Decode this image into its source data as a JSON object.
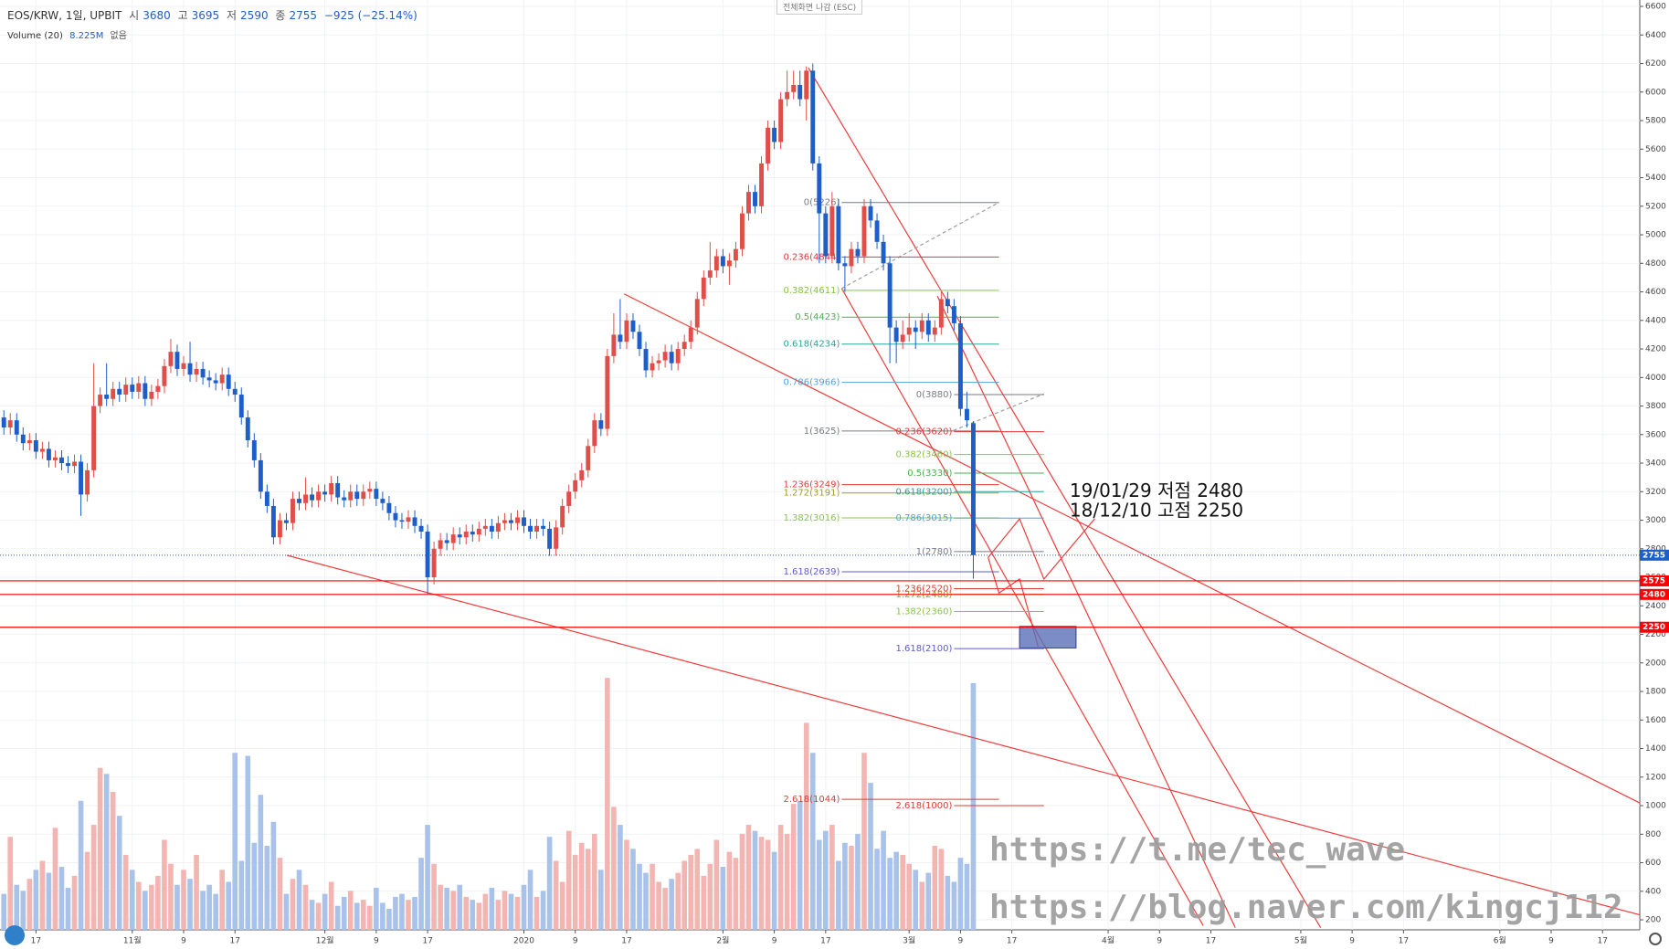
{
  "header": {
    "symbol": "EOS/KRW, 1일, UPBIT",
    "ohlc_labels": [
      "시",
      "고",
      "저",
      "종"
    ],
    "change": "−925 (−25.14%)",
    "volume_title": "Volume (20)",
    "volume_value": "8.225M",
    "volume_extra": "없음",
    "fullscreen": "전체화면 나감 (ESC)"
  },
  "chart_data": {
    "type": "candlestick",
    "x": [
      10,
      11,
      12,
      13,
      14,
      15,
      16,
      17,
      18,
      19,
      20,
      21,
      22,
      23,
      24,
      25,
      26,
      27,
      28,
      29,
      30,
      31,
      32,
      33,
      34,
      35,
      36,
      37,
      38,
      39,
      40,
      41,
      42,
      43,
      44,
      45,
      46,
      47,
      48,
      49,
      50,
      51,
      52,
      53,
      54,
      55,
      56,
      57,
      58,
      59,
      60,
      61,
      62,
      63,
      64,
      65,
      66,
      67,
      68,
      69,
      70,
      71,
      72,
      73,
      74,
      75,
      76,
      77,
      78,
      79,
      80,
      81,
      82,
      83,
      84,
      85,
      86,
      87,
      88,
      89,
      90,
      91,
      92,
      93,
      94,
      95,
      96,
      97,
      98,
      99,
      100,
      101,
      102,
      103,
      104,
      105,
      106,
      107,
      108,
      109,
      110,
      111,
      112,
      113,
      114,
      115,
      116,
      117,
      118,
      119,
      120,
      121,
      122,
      123,
      124,
      125,
      126,
      127,
      128,
      129,
      130,
      131,
      132,
      133,
      134,
      135,
      136,
      137,
      138,
      139,
      140,
      141,
      142,
      143,
      144,
      145,
      146,
      147,
      148,
      149,
      150,
      151,
      152,
      153,
      154,
      155,
      156,
      157,
      158,
      159,
      160,
      161,
      162
    ],
    "open": [
      3800,
      3720,
      3650,
      3700,
      3600,
      3540,
      3560,
      3480,
      3500,
      3420,
      3440,
      3400,
      3380,
      3410,
      3180,
      3350,
      3800,
      3880,
      3850,
      3920,
      3880,
      3950,
      3900,
      3960,
      3850,
      3900,
      3940,
      4080,
      4180,
      4060,
      4100,
      4020,
      4060,
      4000,
      3980,
      3960,
      4020,
      3920,
      3880,
      3720,
      3560,
      3420,
      3200,
      3100,
      2880,
      3000,
      2980,
      3150,
      3120,
      3180,
      3140,
      3200,
      3180,
      3260,
      3160,
      3140,
      3200,
      3150,
      3200,
      3220,
      3150,
      3120,
      3050,
      3000,
      2990,
      3020,
      2960,
      2920,
      2600,
      2800,
      2860,
      2840,
      2900,
      2880,
      2920,
      2900,
      2940,
      2960,
      2920,
      2980,
      3000,
      2980,
      3020,
      2960,
      2920,
      2960,
      2940,
      2800,
      2950,
      3100,
      3200,
      3280,
      3350,
      3520,
      3700,
      3640,
      4150,
      4300,
      4250,
      4400,
      4320,
      4200,
      4050,
      4100,
      4120,
      4180,
      4100,
      4200,
      4250,
      4350,
      4550,
      4700,
      4750,
      4850,
      4780,
      4820,
      4900,
      5150,
      5300,
      5200,
      5500,
      5750,
      5650,
      5950,
      6000,
      6050,
      5950,
      6150,
      5500,
      5150,
      4850,
      5200,
      4800,
      4780,
      4900,
      4850,
      5200,
      5100,
      4950,
      4800,
      4350,
      4250,
      4300,
      4350,
      4320,
      4400,
      4300,
      4350,
      4550,
      4500,
      4380,
      3780,
      3680
    ],
    "high": [
      3850,
      3770,
      3750,
      3750,
      3650,
      3610,
      3610,
      3550,
      3550,
      3490,
      3490,
      3450,
      3460,
      3460,
      3400,
      4100,
      3930,
      4100,
      3970,
      3970,
      4000,
      4000,
      4010,
      4010,
      3950,
      3990,
      4130,
      4270,
      4230,
      4150,
      4250,
      4110,
      4110,
      4050,
      4030,
      4070,
      4070,
      3970,
      3930,
      3770,
      3610,
      3470,
      3250,
      3150,
      3050,
      3050,
      3200,
      3200,
      3300,
      3230,
      3250,
      3250,
      3310,
      3310,
      3210,
      3250,
      3250,
      3250,
      3270,
      3270,
      3200,
      3170,
      3100,
      3050,
      3070,
      3070,
      3010,
      2970,
      2850,
      2910,
      2910,
      2950,
      2950,
      2970,
      2970,
      2990,
      3010,
      3010,
      3030,
      3050,
      3050,
      3070,
      3070,
      3010,
      3010,
      3010,
      2990,
      3000,
      3150,
      3250,
      3330,
      3400,
      3570,
      3750,
      3750,
      4200,
      4450,
      4550,
      4450,
      4450,
      4370,
      4250,
      4150,
      4170,
      4230,
      4230,
      4250,
      4300,
      4400,
      4600,
      4750,
      4950,
      4900,
      4900,
      4870,
      4950,
      5200,
      5350,
      5350,
      5550,
      5800,
      5800,
      6000,
      6150,
      6150,
      6150,
      6180,
      6200,
      5550,
      5200,
      5300,
      5250,
      4850,
      4950,
      4950,
      5250,
      5250,
      5150,
      5000,
      4850,
      4400,
      4400,
      4450,
      4400,
      4450,
      4450,
      4400,
      4600,
      4600,
      4550,
      4430,
      3900,
      3695
    ],
    "low": [
      3670,
      3600,
      3600,
      3550,
      3490,
      3490,
      3430,
      3430,
      3370,
      3370,
      3350,
      3330,
      3330,
      3030,
      3130,
      3300,
      3750,
      3800,
      3800,
      3830,
      3830,
      3850,
      3850,
      3800,
      3800,
      3850,
      3890,
      4030,
      4010,
      4010,
      3970,
      3970,
      3950,
      3930,
      3910,
      3910,
      3870,
      3830,
      3670,
      3510,
      3370,
      3150,
      3050,
      2830,
      2830,
      2930,
      2930,
      3070,
      3070,
      3090,
      3090,
      3130,
      3130,
      3110,
      3090,
      3090,
      3100,
      3100,
      3150,
      3100,
      3070,
      3000,
      2950,
      2940,
      2940,
      2910,
      2870,
      2480,
      2550,
      2750,
      2790,
      2790,
      2830,
      2830,
      2850,
      2850,
      2890,
      2870,
      2870,
      2930,
      2930,
      2930,
      2910,
      2870,
      2870,
      2890,
      2750,
      2750,
      2900,
      3050,
      3150,
      3230,
      3300,
      3470,
      3590,
      3590,
      4100,
      4200,
      4200,
      4270,
      4150,
      4000,
      4000,
      4050,
      4070,
      4050,
      4050,
      4150,
      4200,
      4300,
      4500,
      4650,
      4700,
      4730,
      4650,
      4770,
      4850,
      5100,
      5150,
      5150,
      5450,
      5600,
      5600,
      5900,
      5950,
      5900,
      5800,
      5450,
      4800,
      4800,
      4800,
      4750,
      4600,
      4730,
      4800,
      4800,
      5050,
      4900,
      4750,
      4100,
      4100,
      4200,
      4250,
      4200,
      4270,
      4250,
      4250,
      4300,
      4450,
      4330,
      3730,
      3650,
      2590
    ],
    "close": [
      3720,
      3650,
      3700,
      3600,
      3540,
      3560,
      3480,
      3500,
      3420,
      3440,
      3400,
      3380,
      3410,
      3180,
      3350,
      3800,
      3880,
      3850,
      3920,
      3880,
      3950,
      3900,
      3960,
      3850,
      3900,
      3940,
      4080,
      4180,
      4060,
      4100,
      4020,
      4060,
      4000,
      3980,
      3960,
      4020,
      3920,
      3880,
      3720,
      3560,
      3420,
      3200,
      3100,
      2880,
      3000,
      2980,
      3150,
      3120,
      3180,
      3140,
      3200,
      3180,
      3260,
      3160,
      3140,
      3200,
      3150,
      3200,
      3220,
      3150,
      3120,
      3050,
      3000,
      2990,
      3020,
      2960,
      2920,
      2600,
      2800,
      2860,
      2840,
      2900,
      2880,
      2920,
      2900,
      2940,
      2960,
      2920,
      2980,
      3000,
      2980,
      3020,
      2960,
      2920,
      2960,
      2940,
      2800,
      2950,
      3100,
      3200,
      3280,
      3350,
      3520,
      3700,
      3640,
      4150,
      4300,
      4250,
      4400,
      4320,
      4200,
      4050,
      4100,
      4120,
      4180,
      4100,
      4200,
      4250,
      4350,
      4550,
      4700,
      4750,
      4850,
      4780,
      4820,
      4900,
      5150,
      5300,
      5200,
      5500,
      5750,
      5650,
      5950,
      6000,
      6050,
      5950,
      6150,
      5500,
      5150,
      4850,
      5200,
      4800,
      4780,
      4900,
      4850,
      5200,
      5100,
      4950,
      4800,
      4350,
      4250,
      4300,
      4350,
      4320,
      4400,
      4300,
      4350,
      4550,
      4500,
      4380,
      3780,
      3700,
      2755
    ],
    "volume": [
      2.0,
      1.2,
      3.1,
      1.5,
      1.3,
      1.7,
      2.0,
      2.3,
      1.9,
      3.4,
      2.1,
      1.4,
      1.8,
      4.3,
      2.6,
      3.5,
      5.4,
      5.2,
      4.6,
      3.8,
      2.5,
      2.0,
      1.6,
      1.3,
      1.5,
      1.8,
      3.0,
      2.2,
      1.5,
      2.0,
      1.7,
      2.5,
      1.3,
      1.5,
      1.2,
      2.0,
      1.6,
      5.9,
      2.3,
      5.8,
      2.9,
      4.5,
      2.8,
      3.6,
      2.4,
      1.2,
      1.7,
      2.0,
      1.5,
      1.0,
      0.9,
      1.2,
      1.6,
      0.8,
      1.1,
      1.3,
      0.9,
      1.0,
      0.8,
      1.4,
      0.9,
      0.7,
      1.1,
      1.2,
      1.0,
      1.1,
      2.4,
      3.5,
      2.2,
      1.5,
      1.4,
      1.3,
      1.5,
      1.1,
      1.0,
      0.9,
      1.2,
      1.4,
      1.0,
      1.3,
      1.2,
      1.1,
      1.5,
      2.0,
      1.1,
      1.3,
      3.1,
      2.3,
      1.6,
      3.3,
      2.5,
      2.9,
      2.7,
      3.2,
      2.0,
      8.4,
      4.1,
      3.5,
      3.0,
      2.7,
      2.2,
      1.9,
      2.2,
      1.6,
      1.4,
      1.7,
      1.9,
      2.3,
      2.5,
      2.7,
      1.8,
      2.2,
      3.0,
      2.1,
      2.6,
      2.4,
      3.2,
      3.5,
      3.3,
      3.1,
      3.0,
      2.6,
      3.5,
      3.2,
      4.2,
      4.3,
      6.9,
      5.9,
      3.0,
      3.3,
      3.5,
      2.3,
      2.9,
      2.8,
      3.2,
      5.9,
      4.9,
      2.7,
      3.3,
      2.4,
      2.6,
      2.5,
      2.2,
      2.0,
      1.6,
      1.9,
      2.8,
      2.7,
      1.8,
      1.6,
      2.4,
      2.2,
      8.225
    ],
    "up_color": "#e04e4a",
    "down_color": "#1e5ec8",
    "volume_up_color": "#f3b5b1",
    "volume_down_color": "#a8c2ea",
    "vlim": [
      0,
      31
    ],
    "xlim": [
      10.4,
      265.8
    ],
    "xticks": [
      {
        "value": 16,
        "label": "17"
      },
      {
        "value": 31,
        "label": "11월"
      },
      {
        "value": 39,
        "label": "9"
      },
      {
        "value": 47,
        "label": "17"
      },
      {
        "value": 61,
        "label": "12월"
      },
      {
        "value": 69,
        "label": "9"
      },
      {
        "value": 77,
        "label": "17"
      },
      {
        "value": 92,
        "label": "2020"
      },
      {
        "value": 100,
        "label": "9"
      },
      {
        "value": 108,
        "label": "17"
      },
      {
        "value": 123,
        "label": "2월"
      },
      {
        "value": 131,
        "label": "9"
      },
      {
        "value": 139,
        "label": "17"
      },
      {
        "value": 152,
        "label": "3월"
      },
      {
        "value": 160,
        "label": "9"
      },
      {
        "value": 168,
        "label": "17"
      },
      {
        "value": 183,
        "label": "4월"
      },
      {
        "value": 191,
        "label": "9"
      },
      {
        "value": 199,
        "label": "17"
      },
      {
        "value": 213,
        "label": "5월"
      },
      {
        "value": 221,
        "label": "9"
      },
      {
        "value": 229,
        "label": "17"
      },
      {
        "value": 244,
        "label": "6월"
      },
      {
        "value": 252,
        "label": "9"
      },
      {
        "value": 260,
        "label": "17"
      }
    ],
    "ylim": [
      130,
      6645
    ],
    "yticks": [
      200,
      400,
      600,
      800,
      1000,
      1200,
      1400,
      1600,
      1800,
      2000,
      2200,
      2400,
      2600,
      2800,
      3000,
      3200,
      3400,
      3600,
      3800,
      4000,
      4200,
      4400,
      4600,
      4800,
      5000,
      5200,
      5400,
      5600,
      5800,
      6000,
      6200,
      6400,
      6600
    ],
    "grid": true,
    "hlines": [
      {
        "value": 2575,
        "color": "#ff0000"
      },
      {
        "value": 2480,
        "color": "#ff0000"
      },
      {
        "value": 2250,
        "color": "#ff0000"
      }
    ],
    "fib": [
      {
        "x": [
          141.5,
          166
        ],
        "levels": [
          {
            "label": "0(5226)",
            "value": 5226,
            "color": "#787b86"
          },
          {
            "label": "0.236(4844)",
            "value": 4844,
            "color": "#e53935"
          },
          {
            "label": "0.382(4611)",
            "value": 4611,
            "color": "#8bc34a"
          },
          {
            "label": "0.5(4423)",
            "value": 4423,
            "color": "#4caf50"
          },
          {
            "label": "0.618(4234)",
            "value": 4234,
            "color": "#26a69a"
          },
          {
            "label": "0.786(3966)",
            "value": 3966,
            "color": "#4fa3d8"
          },
          {
            "label": "1(3625)",
            "value": 3625,
            "color": "#787b86"
          },
          {
            "label": "1.236(3249)",
            "value": 3249,
            "color": "#e53935"
          },
          {
            "label": "1.272(3191)",
            "value": 3191,
            "color": "#9e9d24"
          },
          {
            "label": "1.382(3016)",
            "value": 3016,
            "color": "#8bc34a"
          },
          {
            "label": "1.618(2639)",
            "value": 2639,
            "color": "#5c5ccc"
          },
          {
            "label": "2.618(1044)",
            "value": 1044,
            "color": "#e53935"
          }
        ]
      },
      {
        "x": [
          159,
          173
        ],
        "levels": [
          {
            "label": "0(3880)",
            "value": 3880,
            "color": "#787b86"
          },
          {
            "label": "0.236(3620)",
            "value": 3620,
            "color": "#e53935"
          },
          {
            "label": "0.382(3460)",
            "value": 3460,
            "color": "#8bc34a"
          },
          {
            "label": "0.5(3330)",
            "value": 3330,
            "color": "#4caf50"
          },
          {
            "label": "0.618(3200)",
            "value": 3200,
            "color": "#26a69a"
          },
          {
            "label": "0.786(3015)",
            "value": 3015,
            "color": "#4fa3d8"
          },
          {
            "label": "1(2780)",
            "value": 2780,
            "color": "#787b86"
          },
          {
            "label": "1.236(2520)",
            "value": 2520,
            "color": "#e53935"
          },
          {
            "label": "1.272(2480)",
            "value": 2480,
            "color": "#9e9d24"
          },
          {
            "label": "1.382(2360)",
            "value": 2360,
            "color": "#8bc34a"
          },
          {
            "label": "1.618(2100)",
            "value": 2100,
            "color": "#5c5ccc"
          },
          {
            "label": "2.618(1000)",
            "value": 1000,
            "color": "#e53935"
          }
        ]
      }
    ],
    "trendlines": [
      {
        "x": [
          107.6,
          265.8
        ],
        "y": [
          4586,
          1019
        ],
        "color": "#f23b3b"
      },
      {
        "x": [
          55.1,
          265.8
        ],
        "y": [
          2754,
          235
        ],
        "color": "#f23b3b"
      },
      {
        "x": [
          136.3,
          216.1
        ],
        "y": [
          6170,
          145
        ],
        "color": "#f23b3b"
      },
      {
        "x": [
          156.4,
          202.8
        ],
        "y": [
          4571,
          145
        ],
        "color": "#f23b3b"
      },
      {
        "x": [
          141.5,
          197.8
        ],
        "y": [
          4624,
          160
        ],
        "color": "#f23b3b"
      },
      {
        "x": [
          164.3,
          169.2,
          173,
          180.9
        ],
        "y": [
          2739,
          3010,
          2588,
          3010
        ],
        "color": "#f23b3b"
      },
      {
        "x": [
          164.3,
          166,
          169.2,
          172.1
        ],
        "y": [
          2739,
          2490,
          2588,
          2113
        ],
        "color": "#f23b3b"
      },
      {
        "x": [
          141.5,
          166
        ],
        "y": [
          4624,
          5227
        ],
        "color": "#9e9e9e",
        "dashed": true
      },
      {
        "x": [
          158.9,
          173
        ],
        "y": [
          3629,
          3885
        ],
        "color": "#9e9e9e",
        "dashed": true
      }
    ],
    "box": {
      "x": [
        169.2,
        178
      ],
      "y": [
        2256,
        2105
      ],
      "color": "#5a6fb8"
    },
    "annotations": [
      {
        "text": "19/01/29 저점 2480",
        "x": 177,
        "y": 3200
      },
      {
        "text": "18/12/10 고점 2250",
        "x": 177,
        "y": 3060
      }
    ],
    "watermarks": [
      "https://t.me/tec_wave",
      "https://blog.naver.com/kingcj112"
    ]
  }
}
